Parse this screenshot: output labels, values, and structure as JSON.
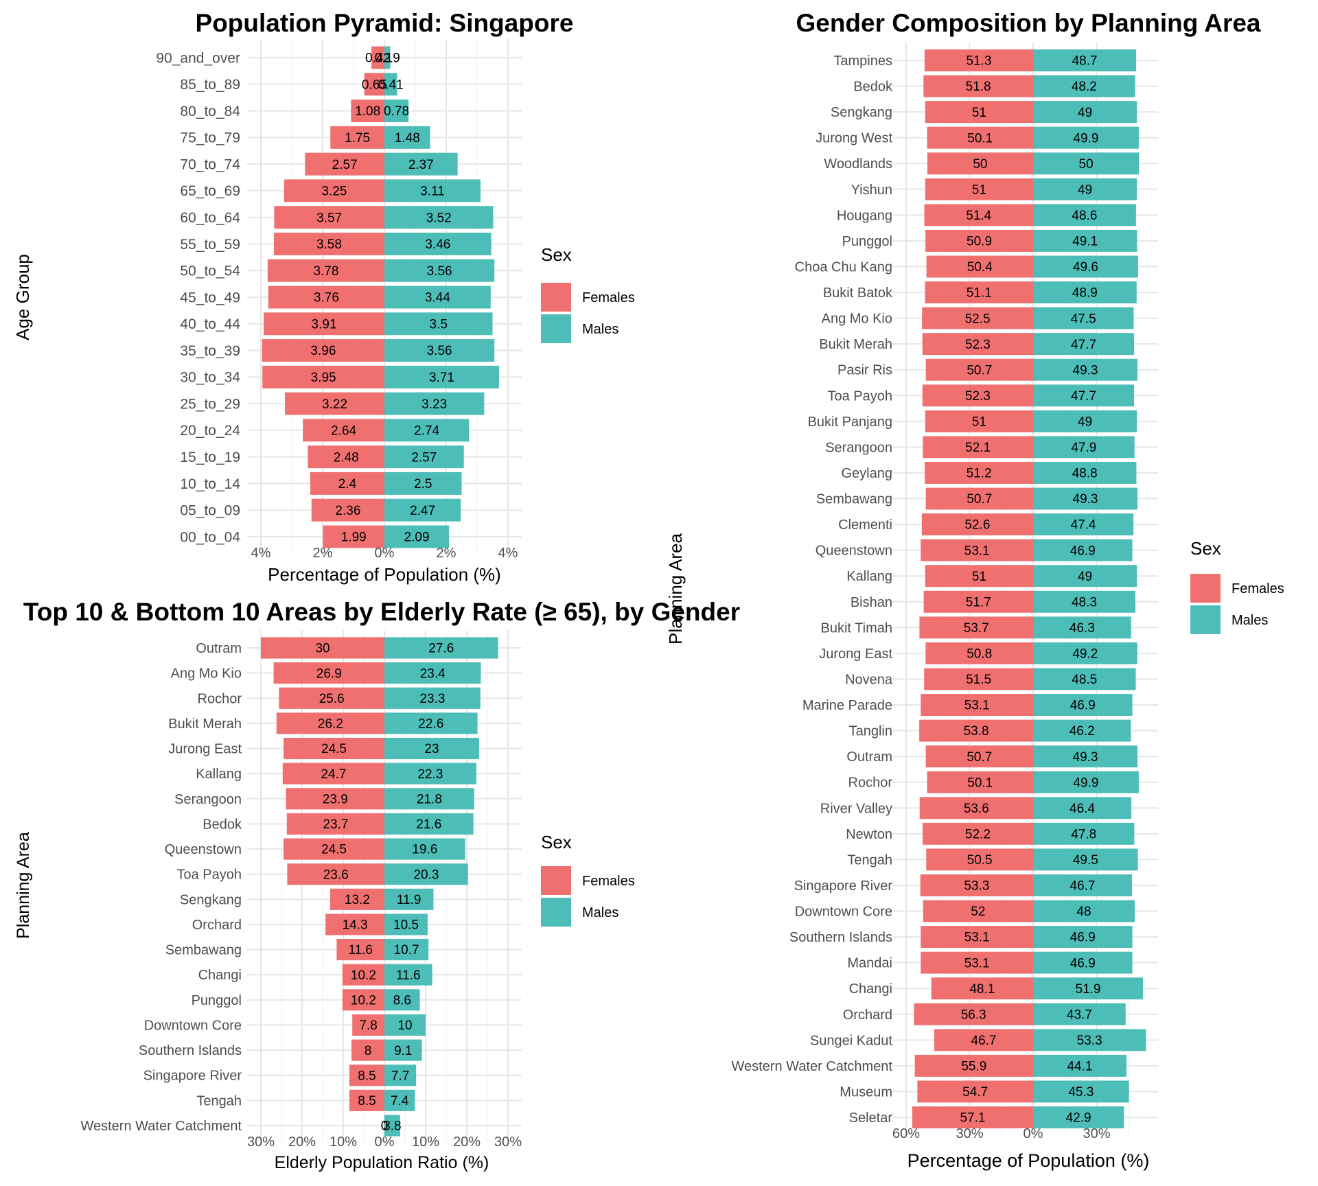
{
  "chart_data": [
    {
      "type": "bar",
      "orientation": "horizontal-diverging",
      "title": "Population Pyramid: Singapore",
      "xlabel": "Percentage of Population (%)",
      "ylabel": "Age Group",
      "xlim": [
        -4,
        4
      ],
      "xticks": [
        "4%",
        "2%",
        "0%",
        "2%",
        "4%"
      ],
      "legend": {
        "title": "Sex",
        "position": "right",
        "items": [
          "Females",
          "Males"
        ]
      },
      "colors": {
        "Females": "#F07070",
        "Males": "#4DBDB7"
      },
      "categories": [
        "90_and_over",
        "85_to_89",
        "80_to_84",
        "75_to_79",
        "70_to_74",
        "65_to_69",
        "60_to_64",
        "55_to_59",
        "50_to_54",
        "45_to_49",
        "40_to_44",
        "35_to_39",
        "30_to_34",
        "25_to_29",
        "20_to_24",
        "15_to_19",
        "10_to_14",
        "05_to_09",
        "00_to_04"
      ],
      "series": [
        {
          "name": "Females",
          "values": [
            0.42,
            0.65,
            1.08,
            1.75,
            2.57,
            3.25,
            3.57,
            3.58,
            3.78,
            3.76,
            3.91,
            3.96,
            3.95,
            3.22,
            2.64,
            2.48,
            2.4,
            2.36,
            1.99
          ]
        },
        {
          "name": "Males",
          "values": [
            0.19,
            0.41,
            0.78,
            1.48,
            2.37,
            3.11,
            3.52,
            3.46,
            3.56,
            3.44,
            3.5,
            3.56,
            3.71,
            3.23,
            2.74,
            2.57,
            2.5,
            2.47,
            2.09
          ]
        }
      ],
      "grid": true
    },
    {
      "type": "bar",
      "orientation": "horizontal-diverging",
      "title": "Top 10 & Bottom 10 Areas by Elderly Rate (≥ 65), by Gender",
      "xlabel": "Elderly Population Ratio (%)",
      "ylabel": "Planning Area",
      "xlim": [
        -30,
        30
      ],
      "xticks": [
        "30%",
        "20%",
        "10%",
        "0%",
        "10%",
        "20%",
        "30%"
      ],
      "legend": {
        "title": "Sex",
        "position": "right",
        "items": [
          "Females",
          "Males"
        ]
      },
      "categories": [
        "Outram",
        "Ang Mo Kio",
        "Rochor",
        "Bukit Merah",
        "Jurong East",
        "Kallang",
        "Serangoon",
        "Bedok",
        "Queenstown",
        "Toa Payoh",
        "Sengkang",
        "Orchard",
        "Sembawang",
        "Changi",
        "Punggol",
        "Downtown Core",
        "Southern Islands",
        "Singapore River",
        "Tengah",
        "Western Water Catchment"
      ],
      "series": [
        {
          "name": "Females",
          "values": [
            30,
            26.9,
            25.6,
            26.2,
            24.5,
            24.7,
            23.9,
            23.7,
            24.5,
            23.6,
            13.2,
            14.3,
            11.6,
            10.2,
            10.2,
            7.8,
            8,
            8.5,
            8.5,
            0
          ]
        },
        {
          "name": "Males",
          "values": [
            27.6,
            23.4,
            23.3,
            22.6,
            23,
            22.3,
            21.8,
            21.6,
            19.6,
            20.3,
            11.9,
            10.5,
            10.7,
            11.6,
            8.6,
            10,
            9.1,
            7.7,
            7.4,
            3.8
          ]
        }
      ],
      "grid": true
    },
    {
      "type": "bar",
      "orientation": "horizontal-diverging",
      "title": "Gender Composition by Planning Area",
      "xlabel": "Percentage of Population (%)",
      "ylabel": "Planning Area",
      "xlim": [
        -60,
        60
      ],
      "xticks": [
        "60%",
        "30%",
        "0%",
        "30%"
      ],
      "legend": {
        "title": "Sex",
        "position": "right",
        "items": [
          "Females",
          "Males"
        ]
      },
      "categories": [
        "Tampines",
        "Bedok",
        "Sengkang",
        "Jurong West",
        "Woodlands",
        "Yishun",
        "Hougang",
        "Punggol",
        "Choa Chu Kang",
        "Bukit Batok",
        "Ang Mo Kio",
        "Bukit Merah",
        "Pasir Ris",
        "Toa Payoh",
        "Bukit Panjang",
        "Serangoon",
        "Geylang",
        "Sembawang",
        "Clementi",
        "Queenstown",
        "Kallang",
        "Bishan",
        "Bukit Timah",
        "Jurong East",
        "Novena",
        "Marine Parade",
        "Tanglin",
        "Outram",
        "Rochor",
        "River Valley",
        "Newton",
        "Tengah",
        "Singapore River",
        "Downtown Core",
        "Southern Islands",
        "Mandai",
        "Changi",
        "Orchard",
        "Sungei Kadut",
        "Western Water Catchment",
        "Museum",
        "Seletar"
      ],
      "series": [
        {
          "name": "Females",
          "values": [
            51.3,
            51.8,
            51,
            50.1,
            50,
            51,
            51.4,
            50.9,
            50.4,
            51.1,
            52.5,
            52.3,
            50.7,
            52.3,
            51,
            52.1,
            51.2,
            50.7,
            52.6,
            53.1,
            51,
            51.7,
            53.7,
            50.8,
            51.5,
            53.1,
            53.8,
            50.7,
            50.1,
            53.6,
            52.2,
            50.5,
            53.3,
            52,
            53.1,
            53.1,
            48.1,
            56.3,
            46.7,
            55.9,
            54.7,
            57.1
          ]
        },
        {
          "name": "Males",
          "values": [
            48.7,
            48.2,
            49,
            49.9,
            50,
            49,
            48.6,
            49.1,
            49.6,
            48.9,
            47.5,
            47.7,
            49.3,
            47.7,
            49,
            47.9,
            48.8,
            49.3,
            47.4,
            46.9,
            49,
            48.3,
            46.3,
            49.2,
            48.5,
            46.9,
            46.2,
            49.3,
            49.9,
            46.4,
            47.8,
            49.5,
            46.7,
            48,
            46.9,
            46.9,
            51.9,
            43.7,
            53.3,
            44.1,
            45.3,
            42.9
          ]
        }
      ],
      "grid": true
    }
  ]
}
